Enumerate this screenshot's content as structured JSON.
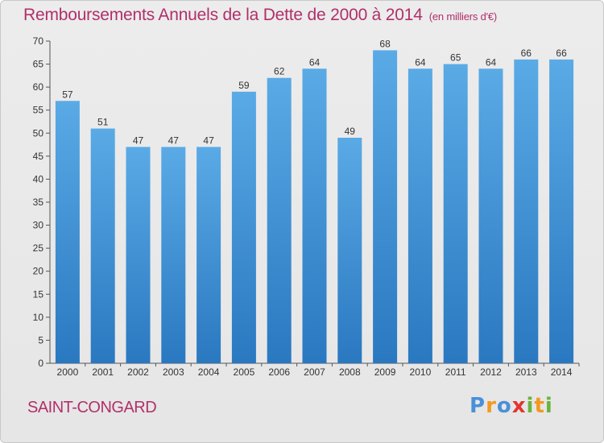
{
  "header": {
    "title": "Remboursements Annuels de la Dette de 2000 à 2014",
    "subtitle": "(en milliers d'€)"
  },
  "footer": {
    "place": "SAINT-CONGARD",
    "logo_text": "Proxiti"
  },
  "colors": {
    "bar_light": "#5aaae6",
    "bar_dark": "#2a78c0",
    "axis": "#555555",
    "title": "#b0306a"
  },
  "chart_data": {
    "type": "bar",
    "title": "Remboursements Annuels de la Dette de 2000 à 2014",
    "xlabel": "",
    "ylabel": "(en milliers d'€)",
    "categories": [
      "2000",
      "2001",
      "2002",
      "2003",
      "2004",
      "2005",
      "2006",
      "2007",
      "2008",
      "2009",
      "2010",
      "2011",
      "2012",
      "2013",
      "2014"
    ],
    "values": [
      57,
      51,
      47,
      47,
      47,
      59,
      62,
      64,
      49,
      68,
      64,
      65,
      64,
      66,
      66
    ],
    "ylim": [
      0,
      70
    ],
    "yticks": [
      0,
      5,
      10,
      15,
      20,
      25,
      30,
      35,
      40,
      45,
      50,
      55,
      60,
      65,
      70
    ],
    "grid": false,
    "data_labels": true
  }
}
